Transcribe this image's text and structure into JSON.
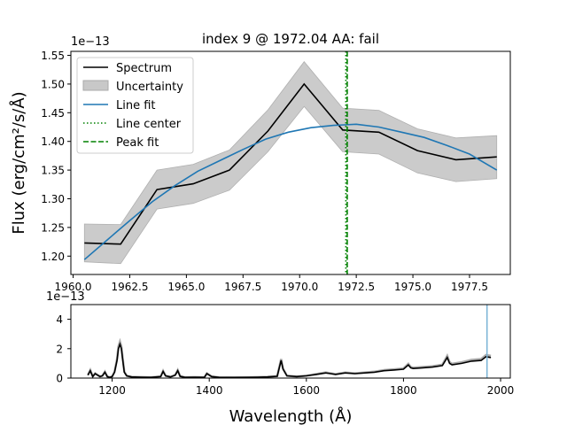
{
  "figure": {
    "title": "index 9 @ 1972.04 AA: fail",
    "ylabel": "Flux (erg/cm²/s/Å)",
    "xlabel": "Wavelength (Å)"
  },
  "chart_data": [
    {
      "type": "line",
      "title": "index 9 @ 1972.04 AA: fail",
      "ylabel": "Flux (erg/cm²/s/Å)",
      "y_scale_label": "1e−13",
      "xlim": [
        1959.9,
        1979.3
      ],
      "ylim": [
        1.168,
        1.557
      ],
      "x_ticks": [
        1960.0,
        1962.5,
        1965.0,
        1967.5,
        1970.0,
        1972.5,
        1975.0,
        1977.5
      ],
      "x_tick_labels": [
        "1960.0",
        "1962.5",
        "1965.0",
        "1967.5",
        "1970.0",
        "1972.5",
        "1975.0",
        "1977.5"
      ],
      "y_ticks": [
        1.2,
        1.25,
        1.3,
        1.35,
        1.4,
        1.45,
        1.5,
        1.55
      ],
      "y_tick_labels": [
        "1.20",
        "1.25",
        "1.30",
        "1.35",
        "1.40",
        "1.45",
        "1.50",
        "1.55"
      ],
      "legend_position": "top-left",
      "x": [
        1960.5,
        1962.1,
        1963.7,
        1965.3,
        1966.9,
        1968.6,
        1970.2,
        1971.9,
        1973.5,
        1975.2,
        1976.9,
        1978.7
      ],
      "series": [
        {
          "name": "Spectrum",
          "color": "#000000",
          "style": "solid",
          "values": [
            1.223,
            1.221,
            1.316,
            1.326,
            1.35,
            1.418,
            1.5,
            1.42,
            1.416,
            1.384,
            1.368,
            1.373
          ]
        },
        {
          "name": "Uncertainty",
          "color": "#c8c8c8",
          "style": "band",
          "lower": [
            1.19,
            1.187,
            1.282,
            1.292,
            1.315,
            1.382,
            1.461,
            1.382,
            1.378,
            1.345,
            1.33,
            1.335
          ],
          "upper": [
            1.256,
            1.255,
            1.35,
            1.36,
            1.385,
            1.455,
            1.539,
            1.458,
            1.454,
            1.422,
            1.406,
            1.41
          ]
        },
        {
          "name": "Line fit",
          "color": "#1f77b4",
          "style": "solid",
          "x": [
            1960.5,
            1961.5,
            1962.5,
            1963.5,
            1964.5,
            1965.5,
            1966.5,
            1967.5,
            1968.5,
            1969.5,
            1970.5,
            1971.5,
            1972.5,
            1973.5,
            1974.5,
            1975.5,
            1976.5,
            1977.5,
            1978.7
          ],
          "values": [
            1.194,
            1.228,
            1.262,
            1.295,
            1.323,
            1.348,
            1.367,
            1.386,
            1.404,
            1.416,
            1.424,
            1.428,
            1.43,
            1.425,
            1.416,
            1.407,
            1.393,
            1.378,
            1.35
          ]
        },
        {
          "name": "Line center",
          "color": "#008000",
          "style": "dotted",
          "vline": 1972.04
        },
        {
          "name": "Peak fit",
          "color": "#008000",
          "style": "dashed",
          "vline": 1972.1
        }
      ]
    },
    {
      "type": "line",
      "xlabel": "Wavelength (Å)",
      "y_scale_label": "1e−13",
      "xlim": [
        1115,
        2020
      ],
      "ylim": [
        0,
        5
      ],
      "x_ticks": [
        1200,
        1400,
        1600,
        1800,
        2000
      ],
      "x_tick_labels": [
        "1200",
        "1400",
        "1600",
        "1800",
        "2000"
      ],
      "y_ticks": [
        0,
        2,
        4
      ],
      "y_tick_labels": [
        "0",
        "2",
        "4"
      ],
      "marker_vline": {
        "x": 1972.04,
        "color": "#7ab3d6"
      },
      "series": [
        {
          "name": "Spectrum",
          "color": "#000000",
          "x": [
            1150,
            1155,
            1160,
            1165,
            1170,
            1175,
            1180,
            1185,
            1190,
            1195,
            1200,
            1205,
            1210,
            1213,
            1216,
            1219,
            1222,
            1225,
            1230,
            1240,
            1260,
            1280,
            1300,
            1305,
            1310,
            1320,
            1330,
            1335,
            1340,
            1350,
            1370,
            1390,
            1395,
            1400,
            1405,
            1420,
            1450,
            1480,
            1500,
            1520,
            1540,
            1548,
            1552,
            1560,
            1580,
            1600,
            1620,
            1640,
            1650,
            1660,
            1680,
            1700,
            1720,
            1740,
            1760,
            1780,
            1800,
            1810,
            1815,
            1820,
            1840,
            1860,
            1880,
            1890,
            1895,
            1900,
            1920,
            1940,
            1960,
            1970,
            1980
          ],
          "values": [
            0.2,
            0.5,
            0.1,
            0.3,
            0.2,
            0.1,
            0.15,
            0.4,
            0.1,
            0.05,
            0.1,
            0.4,
            1.2,
            2.0,
            2.3,
            2.0,
            1.2,
            0.4,
            0.15,
            0.08,
            0.06,
            0.05,
            0.1,
            0.45,
            0.15,
            0.08,
            0.2,
            0.5,
            0.12,
            0.05,
            0.06,
            0.05,
            0.3,
            0.2,
            0.1,
            0.05,
            0.04,
            0.05,
            0.06,
            0.08,
            0.12,
            1.2,
            0.6,
            0.15,
            0.1,
            0.15,
            0.25,
            0.35,
            0.3,
            0.25,
            0.35,
            0.3,
            0.35,
            0.4,
            0.5,
            0.55,
            0.6,
            0.9,
            0.7,
            0.65,
            0.7,
            0.75,
            0.85,
            1.4,
            1.0,
            0.9,
            1.0,
            1.15,
            1.2,
            1.45,
            1.4
          ]
        }
      ]
    }
  ]
}
